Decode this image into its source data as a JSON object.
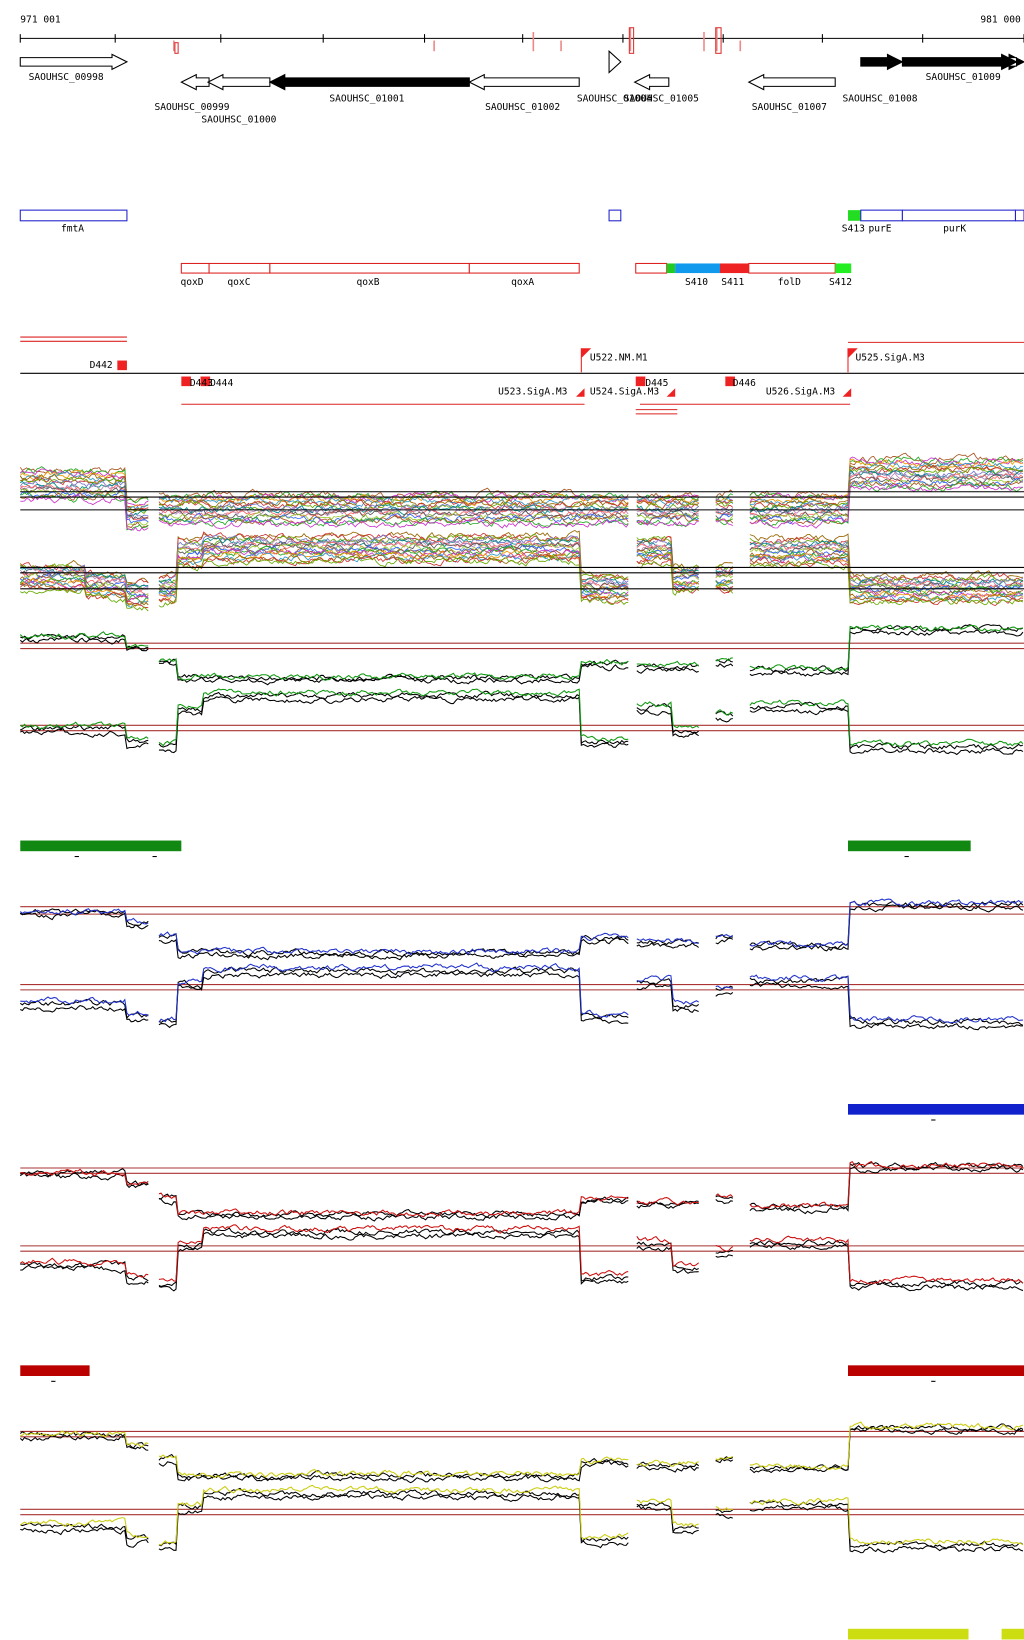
{
  "ruler": {
    "start": "971 001",
    "end": "981 000"
  },
  "genes": [
    "SAOUHSC_00998",
    "SAOUHSC_00999",
    "SAOUHSC_01000",
    "SAOUHSC_01001",
    "SAOUHSC_01002",
    "SAOUHSC_01004",
    "SAOUHSC_01005",
    "SAOUHSC_01007",
    "SAOUHSC_01008",
    "SAOUHSC_01009"
  ],
  "annotations": [
    "fmtA",
    "S413",
    "purE",
    "purK"
  ],
  "operons": [
    "qoxD",
    "qoxC",
    "qoxB",
    "qoxA",
    "S410",
    "S411",
    "folD",
    "S412"
  ],
  "segments": [
    "D442",
    "D443",
    "D444",
    "U522.NM.M1",
    "U523.SigA.M3",
    "U524.SigA.M3",
    "D445",
    "D446",
    "U525.SigA.M3",
    "U526.SigA.M3"
  ]
}
